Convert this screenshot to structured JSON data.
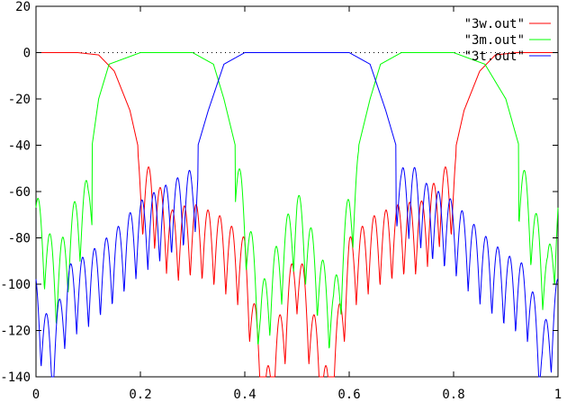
{
  "chart_data": {
    "type": "line",
    "title": "",
    "xlabel": "",
    "ylabel": "",
    "xlim": [
      0,
      1
    ],
    "ylim": [
      -140,
      20
    ],
    "x_ticks": [
      "0",
      "0.2",
      "0.4",
      "0.6",
      "0.8",
      "1"
    ],
    "y_ticks": [
      "20",
      "0",
      "-20",
      "-40",
      "-60",
      "-80",
      "-100",
      "-120",
      "-140"
    ],
    "grid": false,
    "legend_position": "top-right",
    "series": [
      {
        "name": "\"3w.out\"",
        "color": "#ff0000",
        "passbands": [
          [
            0,
            0.12
          ],
          [
            0.88,
            1
          ]
        ],
        "x": [
          0,
          0.08,
          0.12,
          0.15,
          0.18,
          0.2,
          0.22,
          0.26,
          0.3,
          0.35,
          0.4,
          0.44,
          0.5,
          0.56,
          0.6,
          0.65,
          0.7,
          0.74,
          0.78,
          0.8,
          0.82,
          0.85,
          0.88,
          0.92,
          1
        ],
        "values": [
          0,
          0,
          -1,
          -8,
          -25,
          -45,
          -48,
          -66,
          -63,
          -68,
          -78,
          -137,
          -79,
          -137,
          -78,
          -68,
          -63,
          -62,
          -48,
          -45,
          -25,
          -8,
          -1,
          0,
          0
        ]
      },
      {
        "name": "\"3m.out\"",
        "color": "#00ff00",
        "passbands": [
          [
            0.14,
            0.36
          ],
          [
            0.64,
            0.86
          ]
        ],
        "x": [
          0,
          0.04,
          0.08,
          0.1,
          0.12,
          0.14,
          0.2,
          0.25,
          0.3,
          0.34,
          0.36,
          0.4,
          0.43,
          0.5,
          0.57,
          0.6,
          0.64,
          0.66,
          0.7,
          0.75,
          0.8,
          0.86,
          0.9,
          0.94,
          0.98,
          1
        ],
        "values": [
          -58,
          -85,
          -58,
          -52,
          -20,
          -5,
          0,
          0,
          0,
          -5,
          -20,
          -57,
          -100,
          -57,
          -100,
          -57,
          -20,
          -5,
          0,
          0,
          0,
          -5,
          -20,
          -52,
          -85,
          -58
        ]
      },
      {
        "name": "\"3t.out\"",
        "color": "#0000ff",
        "passbands": [
          [
            0.36,
            0.64
          ]
        ],
        "x": [
          0,
          0.03,
          0.06,
          0.1,
          0.15,
          0.2,
          0.25,
          0.3,
          0.33,
          0.36,
          0.4,
          0.5,
          0.6,
          0.64,
          0.67,
          0.7,
          0.72,
          0.75,
          0.8,
          0.85,
          0.9,
          0.94,
          0.97,
          1
        ],
        "values": [
          -95,
          -118,
          -90,
          -85,
          -75,
          -62,
          -55,
          -48,
          -25,
          -5,
          0,
          0,
          0,
          -5,
          -25,
          -48,
          -46,
          -55,
          -62,
          -75,
          -85,
          -90,
          -118,
          -95
        ]
      }
    ]
  }
}
